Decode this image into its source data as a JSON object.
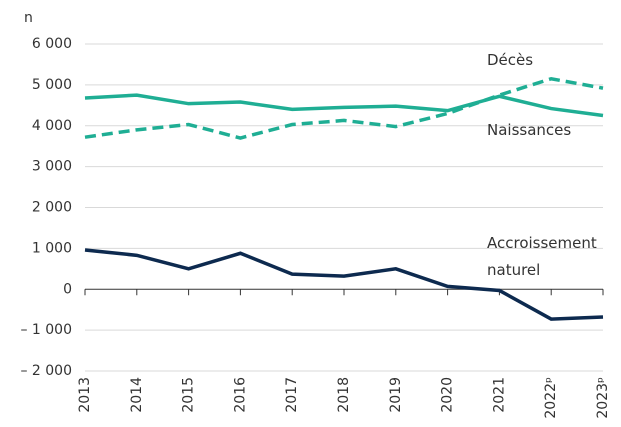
{
  "chart_data": {
    "type": "line",
    "y_unit": "n",
    "categories": [
      "2013",
      "2014",
      "2015",
      "2016",
      "2017",
      "2018",
      "2019",
      "2020",
      "2021",
      "2022ᵖ",
      "2023ᵖ"
    ],
    "series": [
      {
        "name": "Décès",
        "color": "#1fae94",
        "dash": true,
        "values": [
          3720,
          3900,
          4030,
          3700,
          4030,
          4130,
          3980,
          4300,
          4750,
          5150,
          4920
        ]
      },
      {
        "name": "Naissances",
        "color": "#1fae94",
        "dash": false,
        "values": [
          4680,
          4750,
          4540,
          4580,
          4400,
          4450,
          4480,
          4370,
          4720,
          4420,
          4250
        ]
      },
      {
        "name": "Accroissement naturel",
        "color": "#0d2a4f",
        "dash": false,
        "values": [
          960,
          830,
          500,
          880,
          370,
          320,
          500,
          70,
          -30,
          -730,
          -680
        ]
      }
    ],
    "ylim": [
      -2000,
      6000
    ],
    "yticks": [
      {
        "value": -2000,
        "label": "– 2 000"
      },
      {
        "value": -1000,
        "label": "– 1 000"
      },
      0,
      {
        "value": 1000,
        "label": "1 000"
      },
      {
        "value": 2000,
        "label": "2 000"
      },
      {
        "value": 3000,
        "label": "3 000"
      },
      {
        "value": 4000,
        "label": "4 000"
      },
      {
        "value": 5000,
        "label": "5 000"
      },
      {
        "value": 6000,
        "label": "6 000"
      }
    ],
    "grid": true
  }
}
